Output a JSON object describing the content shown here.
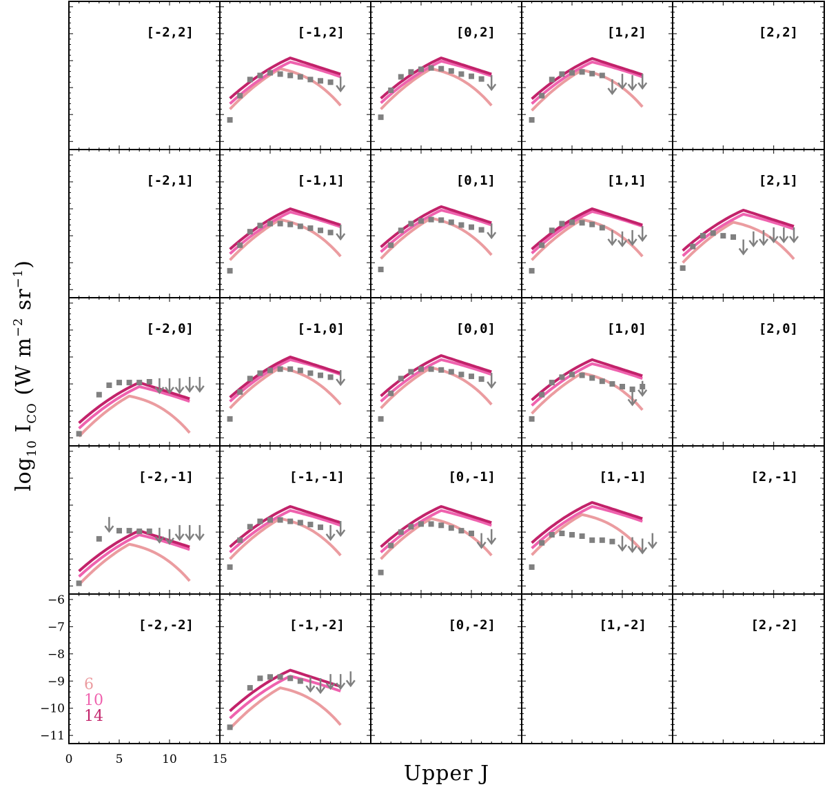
{
  "colors": {
    "model_6": "#eb9ca0",
    "model_10": "#ef62ae",
    "model_14": "#c2226a",
    "obs": "#808080",
    "frame": "#000000"
  },
  "chart_data": {
    "type": "line",
    "title": "",
    "xlabel": "Upper J",
    "ylabel": "log10 I_CO (W m^-2 sr^-1)",
    "ylabel_parts": {
      "log": "log",
      "sub10": "10",
      "I": " I",
      "subCO": "CO",
      "unit_a": " (W m",
      "sup_a": "−2",
      "unit_b": " sr",
      "sup_b": "−1",
      "close": ")"
    },
    "xlim": [
      0,
      15
    ],
    "ylim": [
      -11.3,
      -5.8
    ],
    "x_ticks": [
      0,
      5,
      10,
      15
    ],
    "x_tick_labels": [
      "0",
      "5",
      "10",
      "15"
    ],
    "y_ticks": [
      -6,
      -7,
      -8,
      -9,
      -10,
      -11
    ],
    "y_tick_labels": [
      "−6",
      "−7",
      "−8",
      "−9",
      "−10",
      "−11"
    ],
    "legend": {
      "location": "lower-left of panel [-2,-2]",
      "entries": [
        {
          "label": "6",
          "series": "model_6"
        },
        {
          "label": "10",
          "series": "model_10"
        },
        {
          "label": "14",
          "series": "model_14"
        }
      ]
    },
    "series_names": [
      "6",
      "10",
      "14"
    ],
    "grid": {
      "columns": [
        -2,
        -1,
        0,
        1,
        2
      ],
      "rows": [
        2,
        1,
        0,
        -1,
        -2
      ]
    },
    "panels": [
      {
        "label": "[-2,2]",
        "col": 0,
        "row": 0,
        "empty": true
      },
      {
        "label": "[-1,2]",
        "col": 1,
        "row": 0,
        "c6": -8.3,
        "c10": -8.05,
        "c14": -7.9,
        "points": [
          [
            1,
            -10.2
          ],
          [
            2,
            -9.3
          ],
          [
            3,
            -8.7
          ],
          [
            4,
            -8.55
          ],
          [
            5,
            -8.45
          ],
          [
            6,
            -8.5
          ],
          [
            7,
            -8.55
          ],
          [
            8,
            -8.6
          ],
          [
            9,
            -8.7
          ],
          [
            10,
            -8.75
          ],
          [
            11,
            -8.8
          ]
        ],
        "limits": [
          [
            12,
            -9.05
          ]
        ]
      },
      {
        "label": "[0,2]",
        "col": 2,
        "row": 0,
        "c6": -8.3,
        "c10": -8.02,
        "c14": -7.9,
        "points": [
          [
            1,
            -10.1
          ],
          [
            2,
            -9.1
          ],
          [
            3,
            -8.6
          ],
          [
            4,
            -8.42
          ],
          [
            5,
            -8.32
          ],
          [
            6,
            -8.27
          ],
          [
            7,
            -8.3
          ],
          [
            8,
            -8.38
          ],
          [
            9,
            -8.5
          ],
          [
            10,
            -8.58
          ],
          [
            11,
            -8.68
          ]
        ],
        "limits": [
          [
            12,
            -9.0
          ]
        ]
      },
      {
        "label": "[1,2]",
        "col": 3,
        "row": 0,
        "c6": -8.35,
        "c10": -8.05,
        "c14": -7.92,
        "points": [
          [
            1,
            -10.2
          ],
          [
            2,
            -9.3
          ],
          [
            3,
            -8.7
          ],
          [
            4,
            -8.5
          ],
          [
            5,
            -8.45
          ],
          [
            6,
            -8.42
          ],
          [
            7,
            -8.48
          ],
          [
            8,
            -8.55
          ]
        ],
        "limits": [
          [
            9,
            -9.15
          ],
          [
            10,
            -8.95
          ],
          [
            11,
            -9.0
          ],
          [
            12,
            -8.95
          ]
        ]
      },
      {
        "label": "[2,2]",
        "col": 4,
        "row": 0,
        "empty": true
      },
      {
        "label": "[-2,1]",
        "col": 0,
        "row": 1,
        "empty": true
      },
      {
        "label": "[-1,1]",
        "col": 1,
        "row": 1,
        "c6": -8.4,
        "c10": -8.12,
        "c14": -8.0,
        "points": [
          [
            1,
            -10.3
          ],
          [
            2,
            -9.35
          ],
          [
            3,
            -8.85
          ],
          [
            4,
            -8.62
          ],
          [
            5,
            -8.55
          ],
          [
            6,
            -8.55
          ],
          [
            7,
            -8.58
          ],
          [
            8,
            -8.65
          ],
          [
            9,
            -8.72
          ],
          [
            10,
            -8.8
          ],
          [
            11,
            -8.88
          ]
        ],
        "limits": [
          [
            12,
            -9.05
          ]
        ]
      },
      {
        "label": "[0,1]",
        "col": 2,
        "row": 1,
        "c6": -8.35,
        "c10": -8.05,
        "c14": -7.92,
        "points": [
          [
            1,
            -10.25
          ],
          [
            2,
            -9.35
          ],
          [
            3,
            -8.8
          ],
          [
            4,
            -8.55
          ],
          [
            5,
            -8.45
          ],
          [
            6,
            -8.4
          ],
          [
            7,
            -8.42
          ],
          [
            8,
            -8.5
          ],
          [
            9,
            -8.6
          ],
          [
            10,
            -8.68
          ],
          [
            11,
            -8.78
          ]
        ],
        "limits": [
          [
            12,
            -9.0
          ]
        ]
      },
      {
        "label": "[1,1]",
        "col": 3,
        "row": 1,
        "c6": -8.4,
        "c10": -8.1,
        "c14": -8.0,
        "points": [
          [
            1,
            -10.3
          ],
          [
            2,
            -9.35
          ],
          [
            3,
            -8.8
          ],
          [
            4,
            -8.55
          ],
          [
            5,
            -8.5
          ],
          [
            6,
            -8.52
          ],
          [
            7,
            -8.58
          ],
          [
            8,
            -8.7
          ]
        ],
        "limits": [
          [
            9,
            -9.25
          ],
          [
            10,
            -9.3
          ],
          [
            11,
            -9.25
          ],
          [
            12,
            -9.1
          ]
        ]
      },
      {
        "label": "[2,1]",
        "col": 4,
        "row": 1,
        "c6": -8.5,
        "c10": -8.2,
        "c14": -8.05,
        "points": [
          [
            1,
            -10.2
          ],
          [
            2,
            -9.4
          ],
          [
            3,
            -9.0
          ],
          [
            4,
            -8.9
          ],
          [
            5,
            -9.0
          ],
          [
            6,
            -9.05
          ]
        ],
        "limits": [
          [
            7,
            -9.6
          ],
          [
            8,
            -9.3
          ],
          [
            9,
            -9.25
          ],
          [
            10,
            -9.15
          ],
          [
            11,
            -9.15
          ],
          [
            12,
            -9.15
          ]
        ]
      },
      {
        "label": "[-2,0]",
        "col": 0,
        "row": 2,
        "c6": -9.45,
        "c10": -9.1,
        "c14": -8.95,
        "points": [
          [
            1,
            -10.85
          ],
          [
            3,
            -9.4
          ],
          [
            4,
            -9.05
          ],
          [
            5,
            -8.95
          ],
          [
            6,
            -8.95
          ],
          [
            7,
            -8.95
          ],
          [
            8,
            -8.92
          ]
        ],
        "limits": [
          [
            9,
            -9.25
          ],
          [
            10,
            -9.25
          ],
          [
            11,
            -9.25
          ],
          [
            12,
            -9.2
          ],
          [
            13,
            -9.2
          ]
        ]
      },
      {
        "label": "[-1,0]",
        "col": 1,
        "row": 2,
        "c6": -8.4,
        "c10": -8.1,
        "c14": -8.0,
        "points": [
          [
            1,
            -10.3
          ],
          [
            2,
            -9.3
          ],
          [
            3,
            -8.8
          ],
          [
            4,
            -8.6
          ],
          [
            5,
            -8.5
          ],
          [
            6,
            -8.45
          ],
          [
            7,
            -8.45
          ],
          [
            8,
            -8.5
          ],
          [
            9,
            -8.6
          ],
          [
            10,
            -8.68
          ],
          [
            11,
            -8.75
          ]
        ],
        "limits": [
          [
            12,
            -8.95
          ]
        ]
      },
      {
        "label": "[0,0]",
        "col": 2,
        "row": 2,
        "c6": -8.4,
        "c10": -8.1,
        "c14": -7.95,
        "points": [
          [
            1,
            -10.3
          ],
          [
            2,
            -9.35
          ],
          [
            3,
            -8.8
          ],
          [
            4,
            -8.55
          ],
          [
            5,
            -8.45
          ],
          [
            6,
            -8.45
          ],
          [
            7,
            -8.48
          ],
          [
            8,
            -8.55
          ],
          [
            9,
            -8.65
          ],
          [
            10,
            -8.72
          ],
          [
            11,
            -8.82
          ]
        ],
        "limits": [
          [
            12,
            -9.05
          ]
        ]
      },
      {
        "label": "[1,0]",
        "col": 3,
        "row": 2,
        "c6": -8.6,
        "c10": -8.25,
        "c14": -8.1,
        "points": [
          [
            1,
            -10.3
          ],
          [
            2,
            -9.4
          ],
          [
            3,
            -8.95
          ],
          [
            4,
            -8.75
          ],
          [
            5,
            -8.65
          ],
          [
            6,
            -8.68
          ],
          [
            7,
            -8.78
          ],
          [
            8,
            -8.9
          ],
          [
            9,
            -9.0
          ],
          [
            10,
            -9.1
          ],
          [
            11,
            -9.2
          ],
          [
            12,
            -9.1
          ]
        ],
        "limits": [
          [
            11,
            -9.7
          ],
          [
            12,
            -9.35
          ]
        ]
      },
      {
        "label": "[2,0]",
        "col": 4,
        "row": 2,
        "empty": true
      },
      {
        "label": "[-2,-1]",
        "col": 0,
        "row": 3,
        "c6": -9.45,
        "c10": -9.1,
        "c14": -8.95,
        "points": [
          [
            1,
            -10.9
          ],
          [
            3,
            -9.25
          ],
          [
            5,
            -8.95
          ],
          [
            6,
            -8.95
          ],
          [
            7,
            -8.97
          ],
          [
            8,
            -8.97
          ]
        ],
        "limits": [
          [
            4,
            -8.9
          ],
          [
            9,
            -9.3
          ],
          [
            10,
            -9.35
          ],
          [
            11,
            -9.2
          ],
          [
            12,
            -9.2
          ],
          [
            13,
            -9.2
          ]
        ]
      },
      {
        "label": "[-1,-1]",
        "col": 1,
        "row": 3,
        "c6": -8.5,
        "c10": -8.2,
        "c14": -8.05,
        "points": [
          [
            1,
            -10.3
          ],
          [
            2,
            -9.3
          ],
          [
            3,
            -8.8
          ],
          [
            4,
            -8.6
          ],
          [
            5,
            -8.55
          ],
          [
            6,
            -8.55
          ],
          [
            7,
            -8.6
          ],
          [
            8,
            -8.65
          ],
          [
            9,
            -8.72
          ],
          [
            10,
            -8.82
          ]
        ],
        "limits": [
          [
            11,
            -9.2
          ],
          [
            12,
            -9.05
          ]
        ]
      },
      {
        "label": "[0,-1]",
        "col": 2,
        "row": 3,
        "c6": -8.5,
        "c10": -8.2,
        "c14": -8.05,
        "points": [
          [
            1,
            -10.5
          ],
          [
            2,
            -9.5
          ],
          [
            3,
            -9.0
          ],
          [
            4,
            -8.8
          ],
          [
            5,
            -8.7
          ],
          [
            6,
            -8.7
          ],
          [
            7,
            -8.75
          ],
          [
            8,
            -8.85
          ],
          [
            9,
            -8.95
          ],
          [
            10,
            -9.05
          ]
        ],
        "limits": [
          [
            11,
            -9.5
          ],
          [
            12,
            -9.35
          ]
        ]
      },
      {
        "label": "[1,-1]",
        "col": 3,
        "row": 3,
        "c6": -8.35,
        "c10": -8.05,
        "c14": -7.9,
        "points": [
          [
            1,
            -10.3
          ],
          [
            2,
            -9.4
          ],
          [
            3,
            -9.1
          ],
          [
            4,
            -9.05
          ],
          [
            5,
            -9.1
          ],
          [
            6,
            -9.15
          ],
          [
            7,
            -9.3
          ],
          [
            8,
            -9.3
          ],
          [
            9,
            -9.35
          ]
        ],
        "limits": [
          [
            10,
            -9.6
          ],
          [
            11,
            -9.65
          ],
          [
            12,
            -9.7
          ],
          [
            13,
            -9.5
          ]
        ]
      },
      {
        "label": "[2,-1]",
        "col": 4,
        "row": 3,
        "empty": true
      },
      {
        "label": "[-2,-2]",
        "col": 0,
        "row": 4,
        "empty": true
      },
      {
        "label": "[-1,-2]",
        "col": 1,
        "row": 4,
        "c6": -9.25,
        "c10": -8.82,
        "c14": -8.6,
        "points": [
          [
            1,
            -10.7
          ],
          [
            3,
            -9.25
          ],
          [
            4,
            -8.9
          ],
          [
            5,
            -8.85
          ],
          [
            6,
            -8.85
          ],
          [
            7,
            -8.9
          ],
          [
            8,
            -9.0
          ]
        ],
        "limits": [
          [
            9,
            -9.3
          ],
          [
            10,
            -9.35
          ],
          [
            11,
            -9.2
          ],
          [
            12,
            -9.2
          ],
          [
            13,
            -9.1
          ]
        ]
      },
      {
        "label": "[0,-2]",
        "col": 2,
        "row": 4,
        "empty": true
      },
      {
        "label": "[1,-2]",
        "col": 3,
        "row": 4,
        "empty": true
      },
      {
        "label": "[2,-2]",
        "col": 4,
        "row": 4,
        "empty": true
      }
    ]
  }
}
